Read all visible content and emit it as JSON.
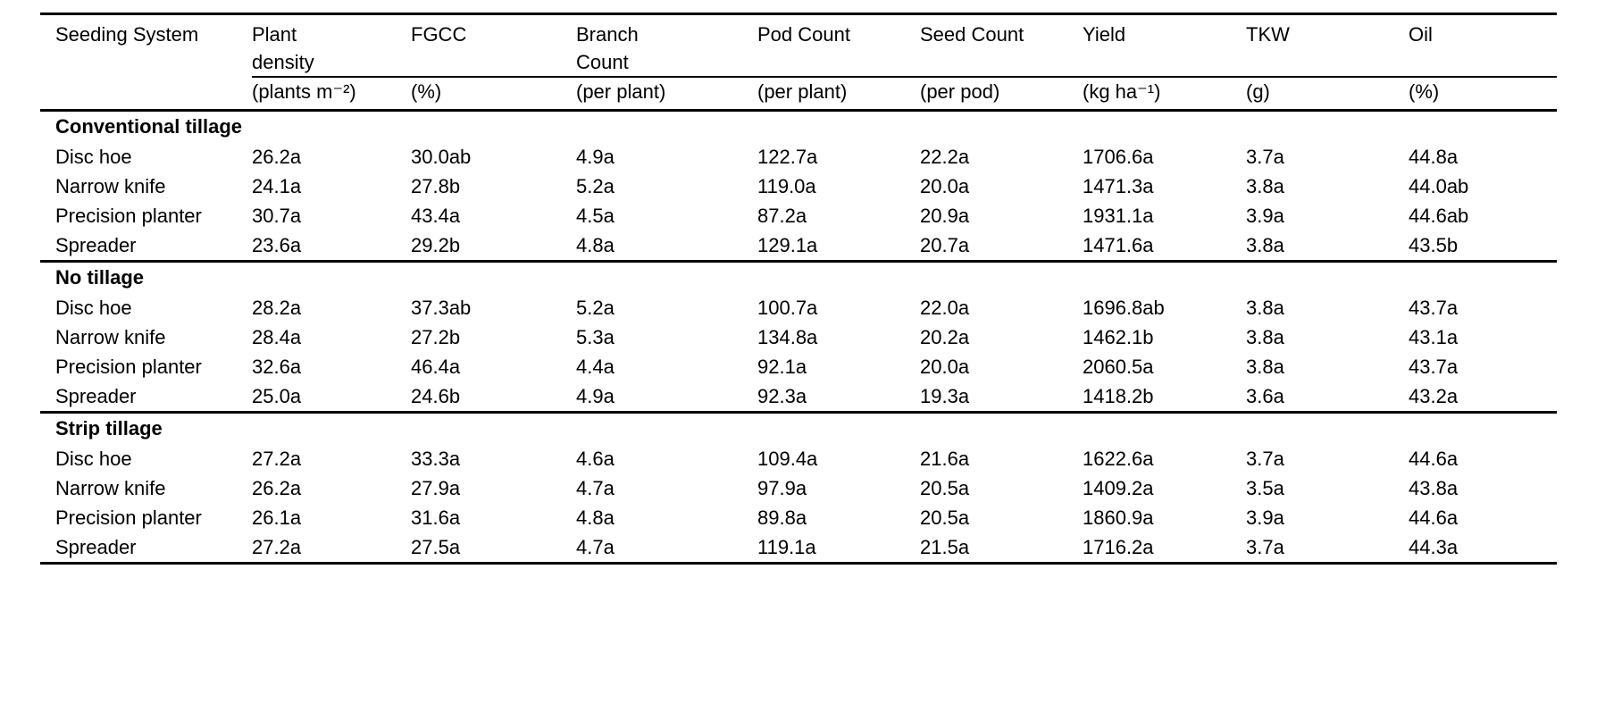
{
  "table": {
    "columns": [
      {
        "label": "Seeding System",
        "unit": ""
      },
      {
        "label": "Plant density",
        "unit": "(plants m⁻²)"
      },
      {
        "label": "FGCC",
        "unit": "(%)"
      },
      {
        "label": "Branch Count",
        "unit": "(per plant)"
      },
      {
        "label": "Pod Count",
        "unit": "(per plant)"
      },
      {
        "label": "Seed Count",
        "unit": "(per pod)"
      },
      {
        "label": "Yield",
        "unit": "(kg ha⁻¹)"
      },
      {
        "label": "TKW",
        "unit": "(g)"
      },
      {
        "label": "Oil",
        "unit": "(%)"
      }
    ],
    "sections": [
      {
        "title": "Conventional tillage",
        "rows": [
          [
            "Disc hoe",
            "26.2a",
            "30.0ab",
            "4.9a",
            "122.7a",
            "22.2a",
            "1706.6a",
            "3.7a",
            "44.8a"
          ],
          [
            "Narrow knife",
            "24.1a",
            "27.8b",
            "5.2a",
            "119.0a",
            "20.0a",
            "1471.3a",
            "3.8a",
            "44.0ab"
          ],
          [
            "Precision planter",
            "30.7a",
            "43.4a",
            "4.5a",
            "87.2a",
            "20.9a",
            "1931.1a",
            "3.9a",
            "44.6ab"
          ],
          [
            "Spreader",
            "23.6a",
            "29.2b",
            "4.8a",
            "129.1a",
            "20.7a",
            "1471.6a",
            "3.8a",
            "43.5b"
          ]
        ]
      },
      {
        "title": "No tillage",
        "rows": [
          [
            "Disc hoe",
            "28.2a",
            "37.3ab",
            "5.2a",
            "100.7a",
            "22.0a",
            "1696.8ab",
            "3.8a",
            "43.7a"
          ],
          [
            "Narrow knife",
            "28.4a",
            "27.2b",
            "5.3a",
            "134.8a",
            "20.2a",
            "1462.1b",
            "3.8a",
            "43.1a"
          ],
          [
            "Precision planter",
            "32.6a",
            "46.4a",
            "4.4a",
            "92.1a",
            "20.0a",
            "2060.5a",
            "3.8a",
            "43.7a"
          ],
          [
            "Spreader",
            "25.0a",
            "24.6b",
            "4.9a",
            "92.3a",
            "19.3a",
            "1418.2b",
            "3.6a",
            "43.2a"
          ]
        ]
      },
      {
        "title": "Strip tillage",
        "rows": [
          [
            "Disc hoe",
            "27.2a",
            "33.3a",
            "4.6a",
            "109.4a",
            "21.6a",
            "1622.6a",
            "3.7a",
            "44.6a"
          ],
          [
            "Narrow knife",
            "26.2a",
            "27.9a",
            "4.7a",
            "97.9a",
            "20.5a",
            "1409.2a",
            "3.5a",
            "43.8a"
          ],
          [
            "Precision planter",
            "26.1a",
            "31.6a",
            "4.8a",
            "89.8a",
            "20.5a",
            "1860.9a",
            "3.9a",
            "44.6a"
          ],
          [
            "Spreader",
            "27.2a",
            "27.5a",
            "4.7a",
            "119.1a",
            "21.5a",
            "1716.2a",
            "3.7a",
            "44.3a"
          ]
        ]
      }
    ]
  }
}
